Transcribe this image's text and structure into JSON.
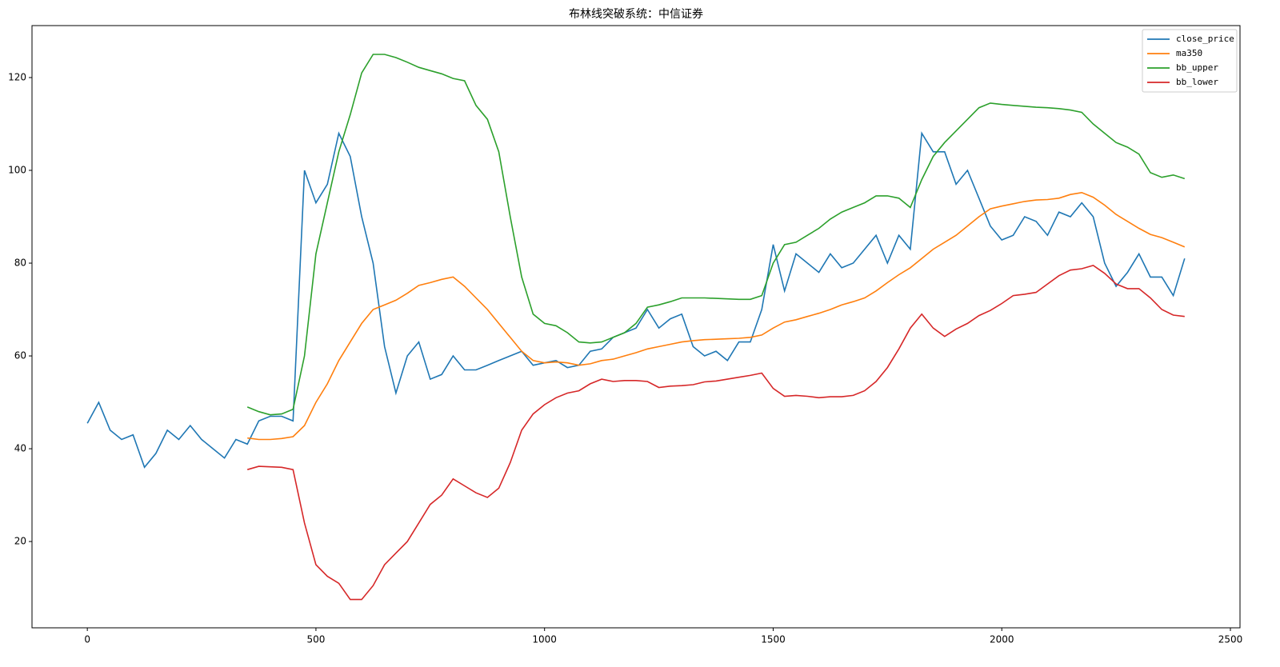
{
  "chart_data": {
    "type": "line",
    "title": "布林线突破系统：中信证券",
    "x": [
      0,
      25,
      50,
      75,
      100,
      125,
      150,
      175,
      200,
      225,
      250,
      275,
      300,
      325,
      350,
      375,
      400,
      425,
      450,
      475,
      500,
      525,
      550,
      575,
      600,
      625,
      650,
      675,
      700,
      725,
      750,
      775,
      800,
      825,
      850,
      875,
      900,
      925,
      950,
      975,
      1000,
      1025,
      1050,
      1075,
      1100,
      1125,
      1150,
      1175,
      1200,
      1225,
      1250,
      1275,
      1300,
      1325,
      1350,
      1375,
      1400,
      1425,
      1450,
      1475,
      1500,
      1525,
      1550,
      1575,
      1600,
      1625,
      1650,
      1675,
      1700,
      1725,
      1750,
      1775,
      1800,
      1825,
      1850,
      1875,
      1900,
      1925,
      1950,
      1975,
      2000,
      2025,
      2050,
      2075,
      2100,
      2125,
      2150,
      2175,
      2200,
      2225,
      2250,
      2275,
      2300,
      2325,
      2350,
      2375,
      2400
    ],
    "series": [
      {
        "name": "close_price",
        "color": "#1f77b4",
        "values": [
          45.5,
          50,
          44,
          42,
          43,
          36,
          39,
          44,
          42,
          45,
          42,
          40,
          38,
          42,
          41,
          46,
          47,
          47,
          46,
          100,
          93,
          97,
          108,
          103,
          90,
          80,
          62,
          52,
          60,
          63,
          55,
          56,
          60,
          57,
          57,
          58,
          59,
          60,
          61,
          58,
          58.5,
          59,
          57.5,
          58,
          61,
          61.5,
          64,
          65,
          66,
          70,
          66,
          68,
          69,
          62,
          60,
          61,
          59,
          63,
          63,
          70,
          84,
          74,
          82,
          80,
          78,
          82,
          79,
          80,
          83,
          86,
          80,
          86,
          83,
          108,
          104,
          104,
          97,
          100,
          94,
          88,
          85,
          86,
          90,
          89,
          86,
          91,
          90,
          93,
          90,
          80,
          75,
          78,
          82,
          77,
          77,
          73,
          81
        ]
      },
      {
        "name": "ma350",
        "color": "#ff7f0e",
        "values": [
          null,
          null,
          null,
          null,
          null,
          null,
          null,
          null,
          null,
          null,
          null,
          null,
          null,
          null,
          42.3,
          42,
          42,
          42.2,
          42.6,
          45,
          50,
          54,
          59,
          63,
          67,
          70,
          71,
          72,
          73.5,
          75.2,
          75.8,
          76.5,
          77,
          75,
          72.5,
          70,
          67,
          64,
          61,
          59,
          58.5,
          58.7,
          58.5,
          58,
          58.3,
          59,
          59.3,
          60,
          60.7,
          61.5,
          62,
          62.5,
          63,
          63.3,
          63.5,
          63.6,
          63.7,
          63.8,
          64,
          64.5,
          66,
          67.3,
          67.8,
          68.5,
          69.2,
          70,
          71,
          71.7,
          72.5,
          74,
          75.8,
          77.5,
          79,
          81,
          83,
          84.5,
          86,
          88,
          90,
          91.7,
          92.3,
          92.8,
          93.3,
          93.6,
          93.7,
          94,
          94.8,
          95.2,
          94.2,
          92.5,
          90.5,
          89,
          87.5,
          86.2,
          85.5,
          84.5,
          83.5
        ]
      },
      {
        "name": "bb_upper",
        "color": "#2ca02c",
        "values": [
          null,
          null,
          null,
          null,
          null,
          null,
          null,
          null,
          null,
          null,
          null,
          null,
          null,
          null,
          49,
          48,
          47.3,
          47.5,
          48.5,
          60,
          82,
          93,
          104,
          112,
          121,
          125,
          125,
          124.3,
          123.3,
          122.2,
          121.5,
          120.8,
          119.8,
          119.3,
          114,
          111,
          104,
          90,
          77,
          69,
          67,
          66.5,
          65,
          63,
          62.8,
          63,
          64,
          65,
          67,
          70.5,
          71,
          71.7,
          72.5,
          72.5,
          72.5,
          72.4,
          72.3,
          72.2,
          72.2,
          73,
          80,
          84,
          84.5,
          86,
          87.5,
          89.5,
          91,
          92,
          93,
          94.5,
          94.5,
          94,
          92,
          98,
          103,
          106,
          108.5,
          111,
          113.5,
          114.5,
          114.2,
          114,
          113.8,
          113.6,
          113.5,
          113.3,
          113,
          112.5,
          110,
          108,
          106,
          105,
          103.5,
          99.5,
          98.5,
          99,
          98.2
        ]
      },
      {
        "name": "bb_lower",
        "color": "#d62728",
        "values": [
          null,
          null,
          null,
          null,
          null,
          null,
          null,
          null,
          null,
          null,
          null,
          null,
          null,
          null,
          35.5,
          36.2,
          36.1,
          36,
          35.5,
          24,
          15,
          12.5,
          11,
          7.5,
          7.5,
          10.5,
          15,
          17.5,
          20,
          24,
          28,
          30,
          33.5,
          32,
          30.5,
          29.5,
          31.5,
          37,
          44,
          47.5,
          49.5,
          51,
          52,
          52.5,
          54,
          55,
          54.5,
          54.7,
          54.7,
          54.5,
          53.2,
          53.5,
          53.6,
          53.8,
          54.4,
          54.6,
          55,
          55.4,
          55.8,
          56.3,
          53,
          51.3,
          51.5,
          51.3,
          51,
          51.2,
          51.2,
          51.5,
          52.5,
          54.5,
          57.5,
          61.5,
          66,
          69,
          66,
          64.2,
          65.8,
          67,
          68.7,
          69.8,
          71.3,
          73,
          73.3,
          73.7,
          75.5,
          77.3,
          78.5,
          78.8,
          79.5,
          77.8,
          75.5,
          74.5,
          74.5,
          72.5,
          70,
          68.8,
          68.5
        ]
      }
    ],
    "xlim": [
      -121,
      2521
    ],
    "ylim": [
      1.4,
      131.2
    ],
    "xticks": [
      0,
      500,
      1000,
      1500,
      2000,
      2500
    ],
    "yticks": [
      20,
      40,
      60,
      80,
      100,
      120
    ],
    "legend": "upper right"
  }
}
